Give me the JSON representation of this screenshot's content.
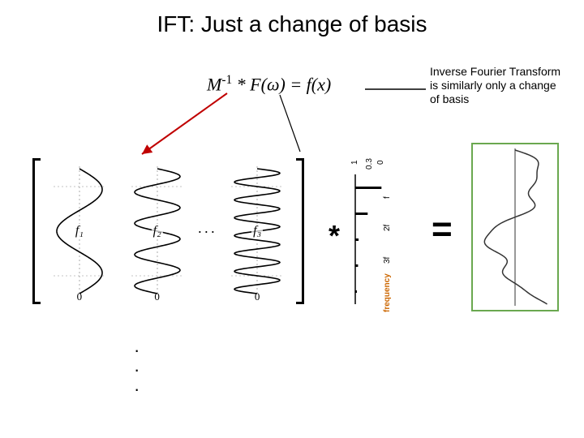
{
  "title": "IFT: Just a change of basis",
  "equation": {
    "lhs_matrix": "M",
    "exponent": "-1",
    "times": " * ",
    "F": "F",
    "omega_open": "(",
    "omega": "ω",
    "omega_close": ")",
    "eq": " = ",
    "fx": "f(x)"
  },
  "annotation": "Inverse Fourier Transform is similarly only a change of basis",
  "basis_waves": [
    {
      "label": "f₁",
      "periods": 1.5,
      "zero": "0"
    },
    {
      "label": "f₂",
      "periods": 4,
      "zero": "0"
    },
    {
      "label": "f₃",
      "periods": 7,
      "zero": "0"
    }
  ],
  "dots_horizontal": "···",
  "dots_vertical": "·\n·\n·",
  "operators": {
    "star": "*",
    "equals": "="
  },
  "spectrum": {
    "top_values": [
      "1",
      "0.3",
      "0"
    ],
    "ticks": [
      "f",
      "2f",
      "3f"
    ],
    "axis_label": "frequency",
    "bar_heights_norm": [
      0.95,
      0.45,
      0.12,
      0.1,
      0.06
    ],
    "colors": {
      "axis": "#000000",
      "bars": "#000000",
      "freq_label": "#cc6600"
    }
  },
  "result_wave": {
    "border_color": "#6aa84f",
    "wave_color": "#333333",
    "center_line_color": "#333333"
  },
  "arrows": {
    "from_equation_left": {
      "color": "#c00000"
    },
    "from_equation_right": {
      "color": "#000000"
    }
  },
  "background": "#ffffff"
}
